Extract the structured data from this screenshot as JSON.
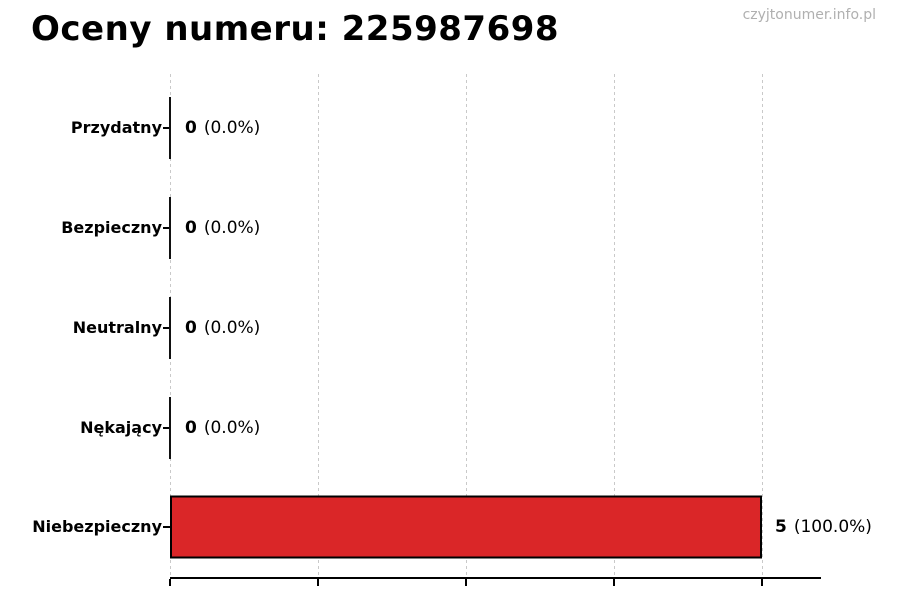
{
  "chart_data": {
    "type": "bar",
    "orientation": "horizontal",
    "title": "Oceny numeru: 225987698",
    "watermark": "czyjtonumer.info.pl",
    "categories": [
      "Przydatny",
      "Bezpieczny",
      "Neutralny",
      "Nękający",
      "Niebezpieczny"
    ],
    "values": [
      0,
      0,
      0,
      0,
      5
    ],
    "value_labels": [
      "0",
      "0",
      "0",
      "0",
      "5"
    ],
    "pct_labels": [
      "(0.0%)",
      "(0.0%)",
      "(0.0%)",
      "(0.0%)",
      "(100.0%)"
    ],
    "total_votes": 5,
    "xlim": [
      0,
      5.5
    ],
    "x_gridline_values": [
      0,
      1.25,
      2.5,
      3.75,
      5
    ],
    "x_tick_labels_visible": false,
    "grid": "vertical dashed",
    "legend": "none",
    "bar_color": "#da2628",
    "bar_edge_color": "#000000",
    "gridline_color": "#c9c9c9",
    "title_color": "#000000",
    "watermark_color": "#b0b0b0"
  }
}
